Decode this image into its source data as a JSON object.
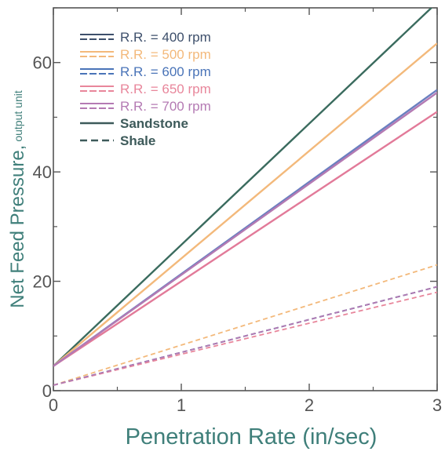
{
  "chart_data": {
    "type": "line",
    "xlabel": "Penetration Rate (in/sec)",
    "ylabel": "Net Feed Pressure,",
    "ylabel_sub": "output unit",
    "xlim": [
      0,
      3
    ],
    "ylim": [
      0,
      70
    ],
    "xticks": [
      0,
      1,
      2,
      3
    ],
    "yticks": [
      0,
      20,
      40,
      60
    ],
    "grid": false,
    "legend_position": "top-left",
    "legend": [
      {
        "label": "R.R. = 400 rpm",
        "color": "#3d4f6b",
        "style": "dual"
      },
      {
        "label": "R.R. = 500 rpm",
        "color": "#f3b97b",
        "style": "dual"
      },
      {
        "label": "R.R. = 600 rpm",
        "color": "#4a74b8",
        "style": "dual"
      },
      {
        "label": "R.R. = 650 rpm",
        "color": "#e8869b",
        "style": "dual"
      },
      {
        "label": "R.R. = 700 rpm",
        "color": "#b47ab3",
        "style": "dual"
      },
      {
        "label": "Sandstone",
        "color": "#3d5a5a",
        "style": "solid"
      },
      {
        "label": "Shale",
        "color": "#3d5a5a",
        "style": "dashed"
      }
    ],
    "series": [
      {
        "name": "R.R. = 400 rpm",
        "rock": "Sandstone",
        "x": [
          0,
          3
        ],
        "y": [
          4.5,
          71
        ],
        "color": "#3a6b5e",
        "dash": "solid"
      },
      {
        "name": "R.R. = 500 rpm",
        "rock": "Sandstone",
        "x": [
          0,
          3
        ],
        "y": [
          4.5,
          63.5
        ],
        "color": "#f3b97b",
        "dash": "solid"
      },
      {
        "name": "R.R. = 600 rpm",
        "rock": "Sandstone",
        "x": [
          0,
          3
        ],
        "y": [
          4.5,
          55
        ],
        "color": "#6a7fc0",
        "dash": "solid"
      },
      {
        "name": "R.R. = 650 rpm",
        "rock": "Sandstone",
        "x": [
          0,
          3
        ],
        "y": [
          4.5,
          51
        ],
        "color": "#e27a99",
        "dash": "solid"
      },
      {
        "name": "R.R. = 700 rpm",
        "rock": "Sandstone",
        "x": [
          0,
          3
        ],
        "y": [
          4.5,
          54.5
        ],
        "color": "#b47ab3",
        "dash": "solid"
      },
      {
        "name": "R.R. = 400 rpm",
        "rock": "Shale",
        "x": [
          0,
          3
        ],
        "y": [
          1,
          19
        ],
        "color": "#3d4f6b",
        "dash": "dashed"
      },
      {
        "name": "R.R. = 500 rpm",
        "rock": "Shale",
        "x": [
          0,
          3
        ],
        "y": [
          1,
          23
        ],
        "color": "#f3b97b",
        "dash": "dashed"
      },
      {
        "name": "R.R. = 600 rpm",
        "rock": "Shale",
        "x": [
          0,
          3
        ],
        "y": [
          1,
          19
        ],
        "color": "#4a74b8",
        "dash": "dashed"
      },
      {
        "name": "R.R. = 650 rpm",
        "rock": "Shale",
        "x": [
          0,
          3
        ],
        "y": [
          1,
          18
        ],
        "color": "#e8869b",
        "dash": "dashed"
      },
      {
        "name": "R.R. = 700 rpm",
        "rock": "Shale",
        "x": [
          0,
          3
        ],
        "y": [
          1,
          19
        ],
        "color": "#b47ab3",
        "dash": "dashed"
      }
    ]
  }
}
